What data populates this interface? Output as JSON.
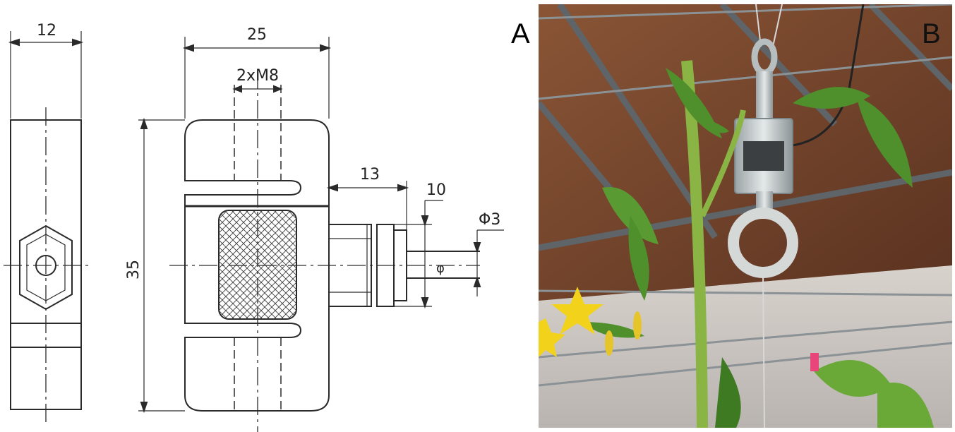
{
  "panels": {
    "a": "A",
    "b": "B"
  },
  "drawing": {
    "dim_width_side": "12",
    "dim_width_front": "25",
    "dim_thread": "2xM8",
    "dim_height": "35",
    "dim_cable_length": "13",
    "dim_gland": "10",
    "dim_cable_dia": "Φ3"
  },
  "colors": {
    "line": "#2a2a2a",
    "roof_wood": "#7a4a2e",
    "steel": "#5e6468",
    "leaf": "#4f8f2c",
    "flower": "#f2d21b",
    "tag": "#e8457a"
  }
}
